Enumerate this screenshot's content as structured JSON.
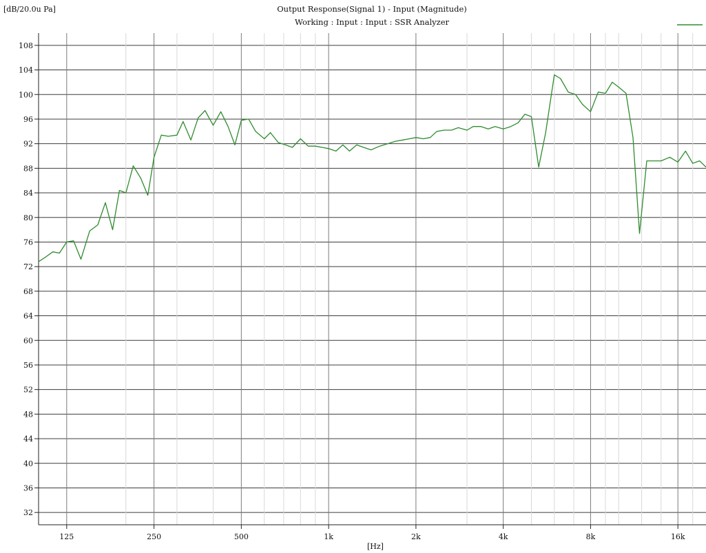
{
  "chart_data": {
    "type": "line",
    "title": "Output Response(Signal 1) - Input (Magnitude)",
    "subtitle": "Working : Input : Input : SSR Analyzer",
    "ylabel": "[dB/20.0u Pa]",
    "xlabel": "[Hz]",
    "x_scale": "log",
    "xlim": [
      100,
      20000
    ],
    "ylim": [
      30,
      110
    ],
    "grid": true,
    "legend_position": "top-right",
    "x_ticks": [
      {
        "value": 125,
        "label": "125"
      },
      {
        "value": 250,
        "label": "250"
      },
      {
        "value": 500,
        "label": "500"
      },
      {
        "value": 1000,
        "label": "1k"
      },
      {
        "value": 2000,
        "label": "2k"
      },
      {
        "value": 4000,
        "label": "4k"
      },
      {
        "value": 8000,
        "label": "8k"
      },
      {
        "value": 16000,
        "label": "16k"
      }
    ],
    "y_ticks": [
      108,
      104,
      100,
      96,
      92,
      88,
      84,
      80,
      76,
      72,
      68,
      64,
      60,
      56,
      52,
      48,
      44,
      40,
      36,
      32
    ],
    "series": [
      {
        "color": "#2e8b2e",
        "x": [
          100,
          106,
          112,
          118,
          125,
          132,
          140,
          150,
          160,
          170,
          180,
          190,
          200,
          212,
          225,
          238,
          250,
          265,
          280,
          300,
          315,
          335,
          355,
          375,
          400,
          425,
          450,
          475,
          500,
          530,
          560,
          600,
          630,
          670,
          710,
          750,
          800,
          850,
          900,
          950,
          1000,
          1060,
          1120,
          1180,
          1250,
          1320,
          1400,
          1500,
          1600,
          1700,
          1800,
          1900,
          2000,
          2120,
          2240,
          2360,
          2500,
          2650,
          2800,
          3000,
          3150,
          3350,
          3550,
          3750,
          4000,
          4250,
          4500,
          4750,
          5000,
          5300,
          5600,
          6000,
          6300,
          6700,
          7100,
          7500,
          8000,
          8500,
          9000,
          9500,
          10000,
          10600,
          11200,
          11800,
          12500,
          13200,
          14000,
          15000,
          16000,
          17000,
          18000,
          19000,
          20000
        ],
        "y": [
          72.8,
          73.6,
          74.4,
          74.2,
          76.0,
          76.2,
          73.2,
          77.8,
          78.8,
          82.4,
          78.0,
          84.4,
          84.0,
          88.4,
          86.4,
          83.6,
          89.8,
          93.4,
          93.2,
          93.4,
          95.6,
          92.6,
          96.2,
          97.4,
          95.0,
          97.2,
          94.8,
          91.8,
          95.8,
          96.0,
          94.0,
          92.8,
          93.8,
          92.2,
          91.8,
          91.4,
          92.8,
          91.6,
          91.6,
          91.4,
          91.2,
          90.8,
          91.8,
          90.8,
          91.8,
          91.4,
          91.0,
          91.6,
          92.0,
          92.4,
          92.6,
          92.8,
          93.0,
          92.8,
          93.0,
          94.0,
          94.2,
          94.2,
          94.6,
          94.2,
          94.8,
          94.8,
          94.4,
          94.8,
          94.4,
          94.8,
          95.4,
          96.8,
          96.4,
          88.2,
          93.8,
          103.2,
          102.6,
          100.4,
          100.0,
          98.4,
          97.2,
          100.4,
          100.2,
          102.0,
          101.2,
          100.2,
          93.0,
          77.4,
          89.2,
          89.2,
          89.2,
          89.8,
          89.0,
          90.8,
          88.8,
          89.2,
          88.2
        ]
      }
    ]
  }
}
